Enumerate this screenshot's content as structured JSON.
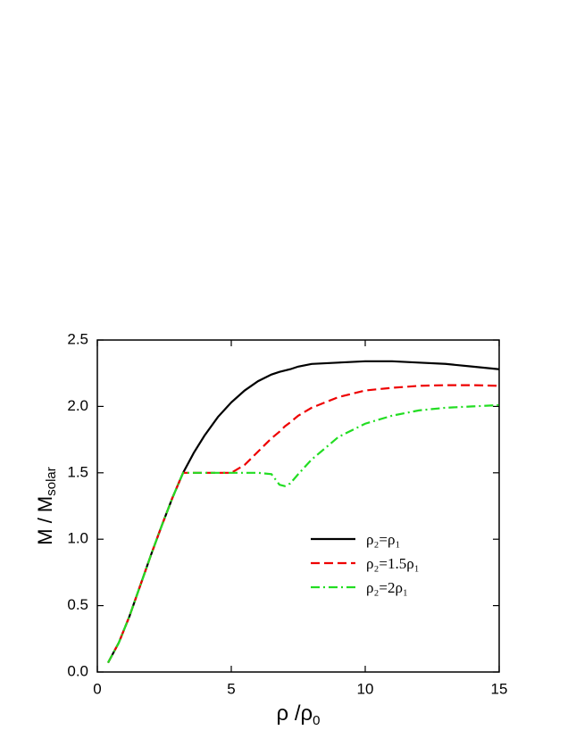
{
  "chart_data": {
    "type": "line",
    "x_label": "ρ /ρ",
    "x_label_sub": "0",
    "y_label": "M / M",
    "y_label_sub": "solar",
    "x": [
      0.4,
      0.8,
      1.2,
      1.6,
      2.0,
      2.4,
      2.8,
      3.2,
      3.6,
      4.0,
      4.5,
      5.0,
      5.5,
      6.0,
      6.5,
      6.8,
      7.0,
      7.2,
      7.5,
      8,
      9,
      10,
      11,
      12,
      13,
      14,
      15
    ],
    "series": [
      {
        "name": "ρ₂=ρ₁",
        "color": "#000000",
        "dash": "solid",
        "values": [
          0.07,
          0.22,
          0.42,
          0.65,
          0.88,
          1.1,
          1.31,
          1.5,
          1.65,
          1.78,
          1.92,
          2.03,
          2.12,
          2.19,
          2.24,
          2.26,
          2.27,
          2.28,
          2.3,
          2.32,
          2.33,
          2.34,
          2.34,
          2.33,
          2.32,
          2.3,
          2.28
        ]
      },
      {
        "name": "ρ₂=1.5ρ₁",
        "color": "#ee0000",
        "dash": "dashed",
        "values": [
          0.07,
          0.22,
          0.42,
          0.65,
          0.88,
          1.1,
          1.31,
          1.5,
          1.5,
          1.5,
          1.5,
          1.5,
          1.56,
          1.66,
          1.76,
          1.81,
          1.85,
          1.88,
          1.93,
          1.99,
          2.07,
          2.12,
          2.14,
          2.155,
          2.16,
          2.16,
          2.155
        ]
      },
      {
        "name": "ρ₂=2ρ₁",
        "color": "#22dd22",
        "dash": "dashdot",
        "values": [
          0.07,
          0.22,
          0.42,
          0.65,
          0.88,
          1.1,
          1.31,
          1.5,
          1.5,
          1.5,
          1.5,
          1.5,
          1.5,
          1.5,
          1.49,
          1.41,
          1.4,
          1.42,
          1.49,
          1.6,
          1.77,
          1.87,
          1.93,
          1.97,
          1.99,
          2.0,
          2.01
        ]
      }
    ],
    "xlim": [
      0,
      15
    ],
    "xticks": [
      0,
      5,
      10,
      15
    ],
    "ylim": [
      0,
      2.5
    ],
    "yticks": [
      {
        "value": 0,
        "label": "0.0"
      },
      {
        "value": 0.5,
        "label": "0.5"
      },
      {
        "value": 1,
        "label": "1.0"
      },
      {
        "value": 1.5,
        "label": "1.5"
      },
      {
        "value": 2,
        "label": "2.0"
      },
      {
        "value": 2.5,
        "label": "2.5"
      }
    ],
    "legend": "right"
  }
}
